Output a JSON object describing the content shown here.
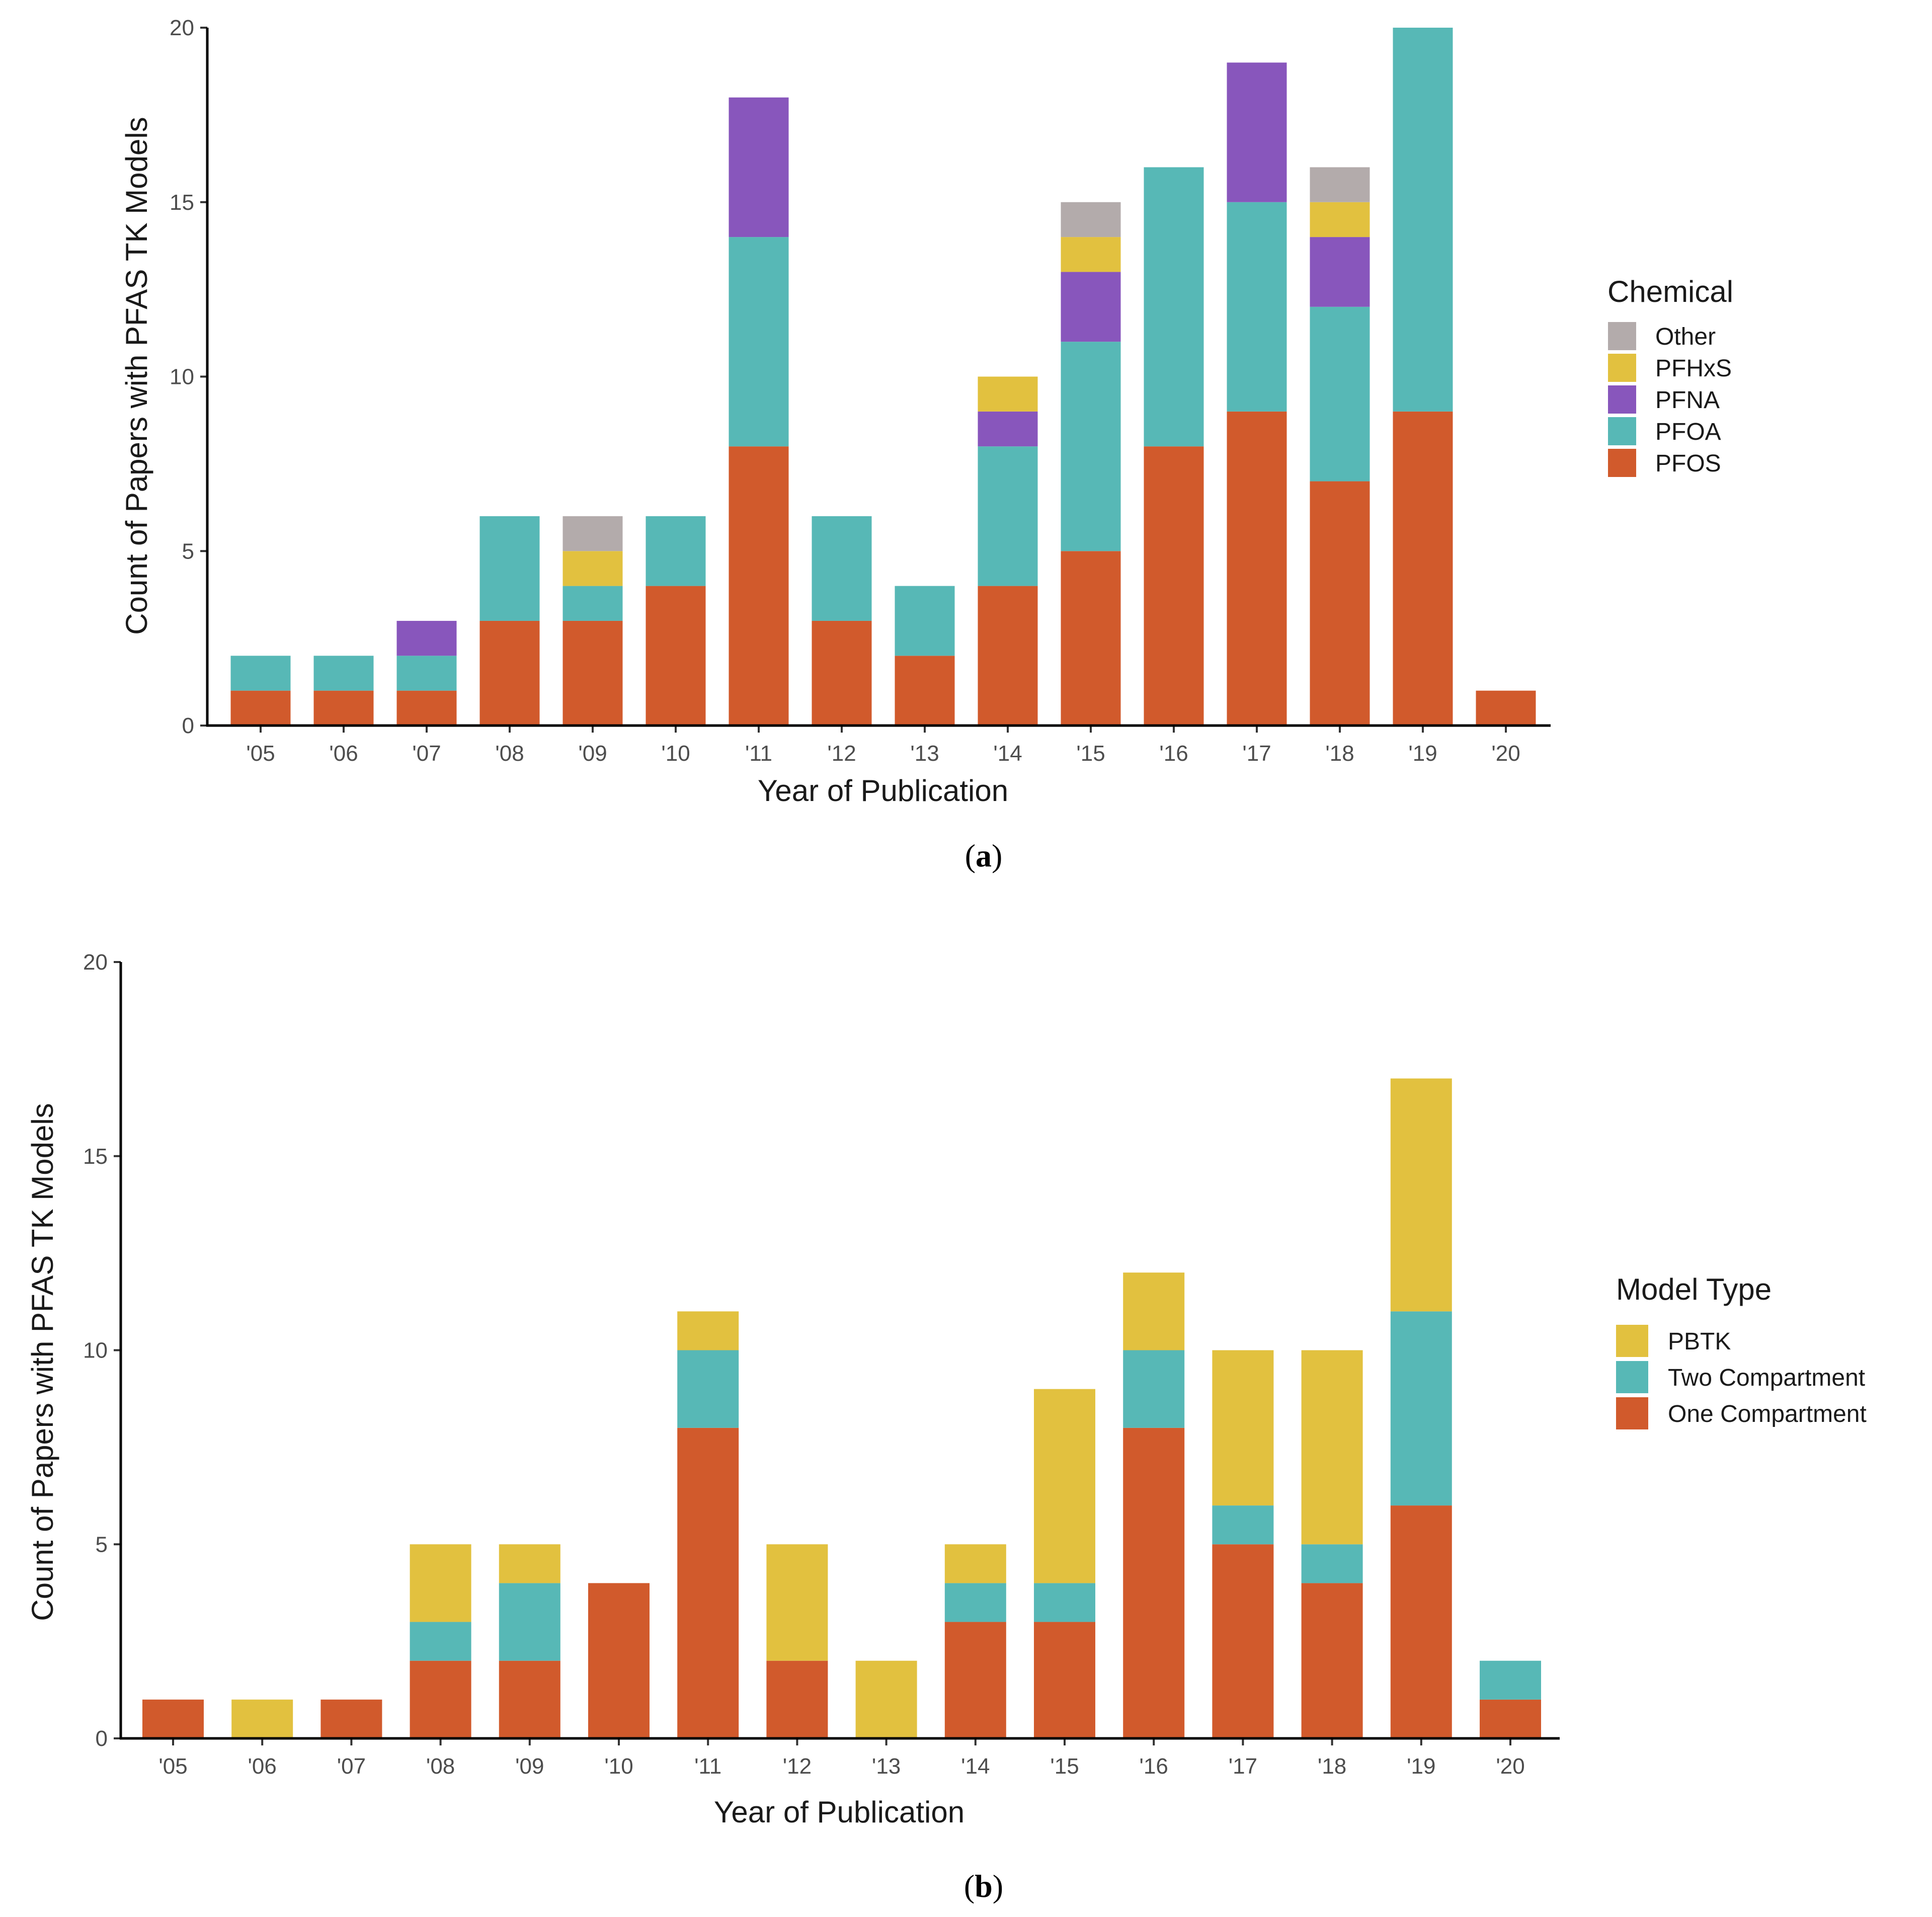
{
  "chart_data": [
    {
      "type": "bar",
      "stacked": true,
      "panel_label": "a",
      "xlabel": "Year of Publication",
      "ylabel": "Count of Papers with PFAS TK Models",
      "ylim": [
        0,
        20
      ],
      "yticks": [
        0,
        5,
        10,
        15,
        20
      ],
      "categories": [
        "'05",
        "'06",
        "'07",
        "'08",
        "'09",
        "'10",
        "'11",
        "'12",
        "'13",
        "'14",
        "'15",
        "'16",
        "'17",
        "'18",
        "'19",
        "'20"
      ],
      "legend_title": "Chemical",
      "legend_position": "right",
      "series": [
        {
          "name": "PFOS",
          "color": "#d15a2c",
          "values": [
            1,
            1,
            1,
            3,
            3,
            4,
            8,
            3,
            2,
            4,
            5,
            8,
            9,
            7,
            9,
            1
          ]
        },
        {
          "name": "PFOA",
          "color": "#57b8b6",
          "values": [
            1,
            1,
            1,
            3,
            1,
            2,
            6,
            3,
            2,
            4,
            6,
            8,
            6,
            5,
            11,
            0
          ]
        },
        {
          "name": "PFNA",
          "color": "#8856bc",
          "values": [
            0,
            0,
            1,
            0,
            0,
            0,
            4,
            0,
            0,
            1,
            2,
            0,
            4,
            2,
            0,
            0
          ]
        },
        {
          "name": "PFHxS",
          "color": "#e2c13f",
          "values": [
            0,
            0,
            0,
            0,
            1,
            0,
            0,
            0,
            0,
            1,
            1,
            0,
            0,
            1,
            0,
            0
          ]
        },
        {
          "name": "Other",
          "color": "#b3abab",
          "values": [
            0,
            0,
            0,
            0,
            1,
            0,
            0,
            0,
            0,
            0,
            1,
            0,
            0,
            1,
            0,
            0
          ]
        }
      ]
    },
    {
      "type": "bar",
      "stacked": true,
      "panel_label": "b",
      "xlabel": "Year of Publication",
      "ylabel": "Count of Papers with PFAS TK Models",
      "ylim": [
        0,
        20
      ],
      "yticks": [
        0,
        5,
        10,
        15,
        20
      ],
      "categories": [
        "'05",
        "'06",
        "'07",
        "'08",
        "'09",
        "'10",
        "'11",
        "'12",
        "'13",
        "'14",
        "'15",
        "'16",
        "'17",
        "'18",
        "'19",
        "'20"
      ],
      "legend_title": "Model Type",
      "legend_position": "right",
      "series": [
        {
          "name": "One Compartment",
          "color": "#d15a2c",
          "values": [
            1,
            0,
            1,
            2,
            2,
            4,
            8,
            2,
            0,
            3,
            3,
            8,
            5,
            4,
            6,
            1
          ]
        },
        {
          "name": "Two Compartment",
          "color": "#57b8b6",
          "values": [
            0,
            0,
            0,
            1,
            2,
            0,
            2,
            0,
            0,
            1,
            1,
            2,
            1,
            1,
            5,
            1
          ]
        },
        {
          "name": "PBTK",
          "color": "#e2c13f",
          "values": [
            0,
            1,
            0,
            2,
            1,
            0,
            1,
            3,
            2,
            1,
            5,
            2,
            4,
            5,
            6,
            0
          ]
        }
      ]
    }
  ]
}
